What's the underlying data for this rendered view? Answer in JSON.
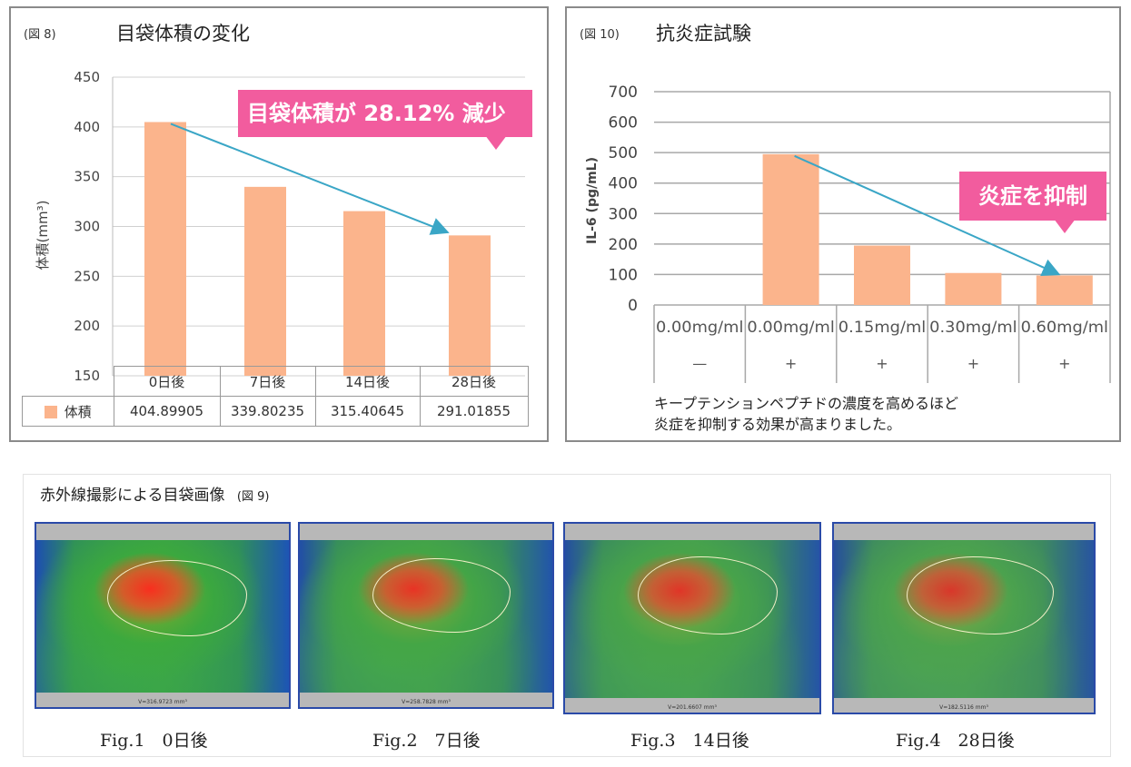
{
  "fig8": {
    "label": "(図 8)",
    "title": "目袋体積の変化",
    "callout": "目袋体積が 28.12% 減少",
    "legend_label": "体積",
    "ylabel": "体積(mm³)"
  },
  "fig10": {
    "label": "(図 10)",
    "title": "抗炎症試験",
    "callout": "炎症を抑制",
    "ylabel": "IL-6 (pg/mL)",
    "note_line1": "キープテンションペプチドの濃度を高めるほど",
    "note_line2": "炎症を抑制する効果が高まりました。"
  },
  "chart_data": [
    {
      "type": "bar",
      "title": "目袋体積の変化",
      "categories": [
        "0日後",
        "7日後",
        "14日後",
        "28日後"
      ],
      "series": [
        {
          "name": "体積",
          "values": [
            404.89905,
            339.80235,
            315.40645,
            291.01855
          ]
        }
      ],
      "value_labels": [
        "404.89905",
        "339.80235",
        "315.40645",
        "291.01855"
      ],
      "ylabel": "体積(mm³)",
      "ylim": [
        150,
        450
      ],
      "yticks": [
        150,
        200,
        250,
        300,
        350,
        400,
        450
      ],
      "color": "#fbb48c",
      "arrow_color": "#3aa6c6"
    },
    {
      "type": "bar",
      "title": "抗炎症試験",
      "categories": [
        "0.00mg/ml",
        "0.00mg/ml",
        "0.15mg/ml",
        "0.30mg/ml",
        "0.60mg/ml"
      ],
      "stimulus": [
        "—",
        "+",
        "+",
        "+",
        "+"
      ],
      "series": [
        {
          "name": "IL-6",
          "values": [
            0,
            495,
            195,
            105,
            97
          ]
        }
      ],
      "ylabel": "IL-6 (pg/mL)",
      "ylim": [
        0,
        700
      ],
      "yticks": [
        0,
        100,
        200,
        300,
        400,
        500,
        600,
        700
      ],
      "color": "#fbb48c",
      "arrow_color": "#3aa6c6"
    }
  ],
  "fig9": {
    "heading": "赤外線撮影による目袋画像",
    "label": "(図 9)",
    "images": [
      {
        "caption": "Fig.1　0日後",
        "volume_text": "V=316.9723 mm³"
      },
      {
        "caption": "Fig.2　7日後",
        "volume_text": "V=258.7828 mm³"
      },
      {
        "caption": "Fig.3　14日後",
        "volume_text": "V=201.6607 mm³"
      },
      {
        "caption": "Fig.4　28日後",
        "volume_text": "V=182.5116 mm³"
      }
    ]
  }
}
